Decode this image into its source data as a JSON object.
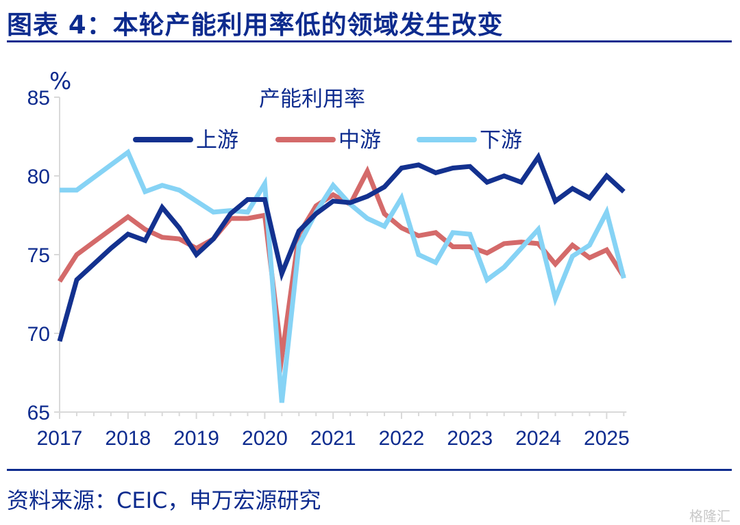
{
  "header": {
    "title": "图表 4：本轮产能利用率低的领域发生改变"
  },
  "footer": {
    "source": "资料来源：CEIC，申万宏源研究",
    "watermark": "格隆汇"
  },
  "colors": {
    "upstream": "#13318f",
    "midstream": "#d46a6a",
    "downstream": "#86d3f5",
    "text": "#0d2b8e",
    "axis": "#d9d9d9"
  },
  "chart_data": {
    "type": "line",
    "title": "产能利用率",
    "ylabel": "%",
    "xlabel": "",
    "ylim": [
      65,
      85
    ],
    "yticks": [
      65,
      70,
      75,
      80,
      85
    ],
    "xticks": [
      2017,
      2018,
      2019,
      2020,
      2021,
      2022,
      2023,
      2024,
      2025
    ],
    "legend_position": "top",
    "grid": false,
    "x": [
      2017.0,
      2017.25,
      2017.5,
      2017.75,
      2018.0,
      2018.25,
      2018.5,
      2018.75,
      2019.0,
      2019.25,
      2019.5,
      2019.75,
      2020.0,
      2020.25,
      2020.5,
      2020.75,
      2021.0,
      2021.25,
      2021.5,
      2021.75,
      2022.0,
      2022.25,
      2022.5,
      2022.75,
      2023.0,
      2023.25,
      2023.5,
      2023.75,
      2024.0,
      2024.25,
      2024.5,
      2024.75,
      2025.0,
      2025.25
    ],
    "series": [
      {
        "name": "上游",
        "key": "upstream",
        "values": [
          69.5,
          73.4,
          74.4,
          75.4,
          76.3,
          75.9,
          78.0,
          76.7,
          75.0,
          76.0,
          77.6,
          78.5,
          78.5,
          73.8,
          76.5,
          77.6,
          78.4,
          78.3,
          78.7,
          79.3,
          80.5,
          80.7,
          80.2,
          80.5,
          80.6,
          79.6,
          80.0,
          79.6,
          81.2,
          78.4,
          79.2,
          78.6,
          80.0,
          79.0
        ]
      },
      {
        "name": "中游",
        "key": "midstream",
        "values": [
          73.3,
          75.0,
          75.8,
          76.6,
          77.4,
          76.6,
          76.1,
          76.0,
          75.4,
          76.0,
          77.3,
          77.3,
          77.5,
          68.5,
          76.3,
          78.1,
          78.8,
          78.2,
          80.3,
          77.6,
          76.7,
          76.2,
          76.4,
          75.5,
          75.5,
          75.1,
          75.7,
          75.8,
          75.7,
          74.4,
          75.6,
          74.8,
          75.3,
          73.6
        ]
      },
      {
        "name": "下游",
        "key": "downstream",
        "values": [
          79.1,
          79.1,
          79.9,
          80.7,
          81.5,
          79.0,
          79.4,
          79.1,
          78.4,
          77.7,
          77.8,
          77.7,
          79.5,
          65.6,
          75.6,
          77.7,
          79.4,
          78.2,
          77.3,
          76.8,
          78.6,
          75.0,
          74.5,
          76.4,
          76.3,
          73.4,
          74.2,
          75.4,
          76.6,
          72.2,
          74.9,
          75.6,
          77.7,
          73.5
        ]
      }
    ]
  }
}
